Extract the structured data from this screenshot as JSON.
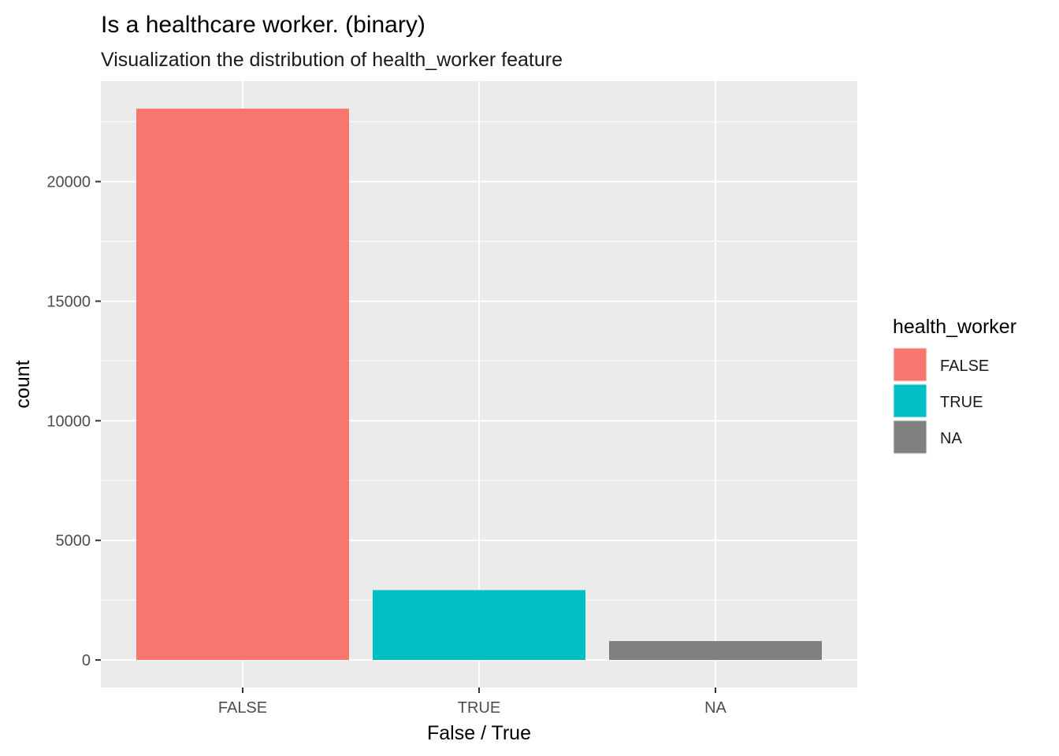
{
  "chart_data": {
    "type": "bar",
    "title": "Is a healthcare worker. (binary)",
    "subtitle": "Visualization the distribution of health_worker feature",
    "xlabel": "False / True",
    "ylabel": "count",
    "categories": [
      "FALSE",
      "TRUE",
      "NA"
    ],
    "values": [
      23050,
      2920,
      790
    ],
    "colors": [
      "#F8766D",
      "#00BFC4",
      "#7F7F7F"
    ],
    "ylim": [
      -1150,
      24200
    ],
    "yticks": [
      0,
      5000,
      10000,
      15000,
      20000
    ],
    "ytick_labels": [
      "0",
      "5000",
      "10000",
      "15000",
      "20000"
    ],
    "grid": true,
    "panel_background": "#EBEBEB",
    "legend": {
      "title": "health_worker",
      "position": "right",
      "entries": [
        {
          "label": "FALSE",
          "color": "#F8766D"
        },
        {
          "label": "TRUE",
          "color": "#00BFC4"
        },
        {
          "label": "NA",
          "color": "#7F7F7F"
        }
      ]
    }
  }
}
